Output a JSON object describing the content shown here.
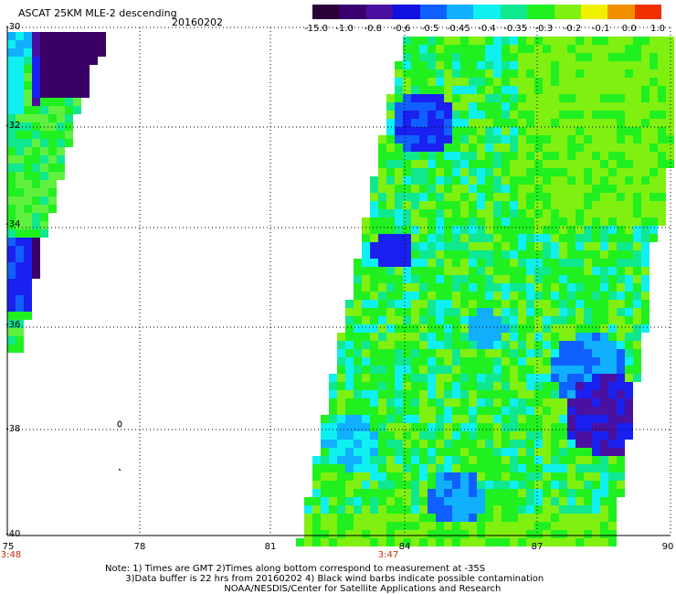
{
  "header": {
    "title": "ASCAT 25KM MLE-2 descending",
    "date": "20160202"
  },
  "colorbar": {
    "labels": [
      "-15.0",
      "-1.0",
      "-0.8",
      "-0.6",
      "-0.5",
      "-0.45",
      "-0.4",
      "-0.35",
      "-0.3",
      "-0.2",
      "-0.1",
      "0.0",
      "1.0"
    ],
    "colors": [
      "#2a0038",
      "#3a0070",
      "#4a10a0",
      "#1010e0",
      "#1060ff",
      "#10b0ff",
      "#10f0f0",
      "#10e890",
      "#20f020",
      "#80f010",
      "#f0f000",
      "#f09000",
      "#f03000"
    ]
  },
  "map": {
    "lat_labels": [
      "-30",
      "-32",
      "-34",
      "-36",
      "-38",
      "-40"
    ],
    "lon_labels": [
      "75",
      "78",
      "81",
      "84",
      "87",
      "90"
    ],
    "times": [
      "3:48",
      "3:47"
    ]
  },
  "notes": [
    "Note: 1) Times are GMT 2)Times along bottom correspond to measurement at -35S",
    "       3)Data buffer is 22 hrs from 20160202 4) Black wind barbs indicate possible contamination",
    "                                         NOAA/NESDIS/Center for Satellite Applications and Research"
  ]
}
